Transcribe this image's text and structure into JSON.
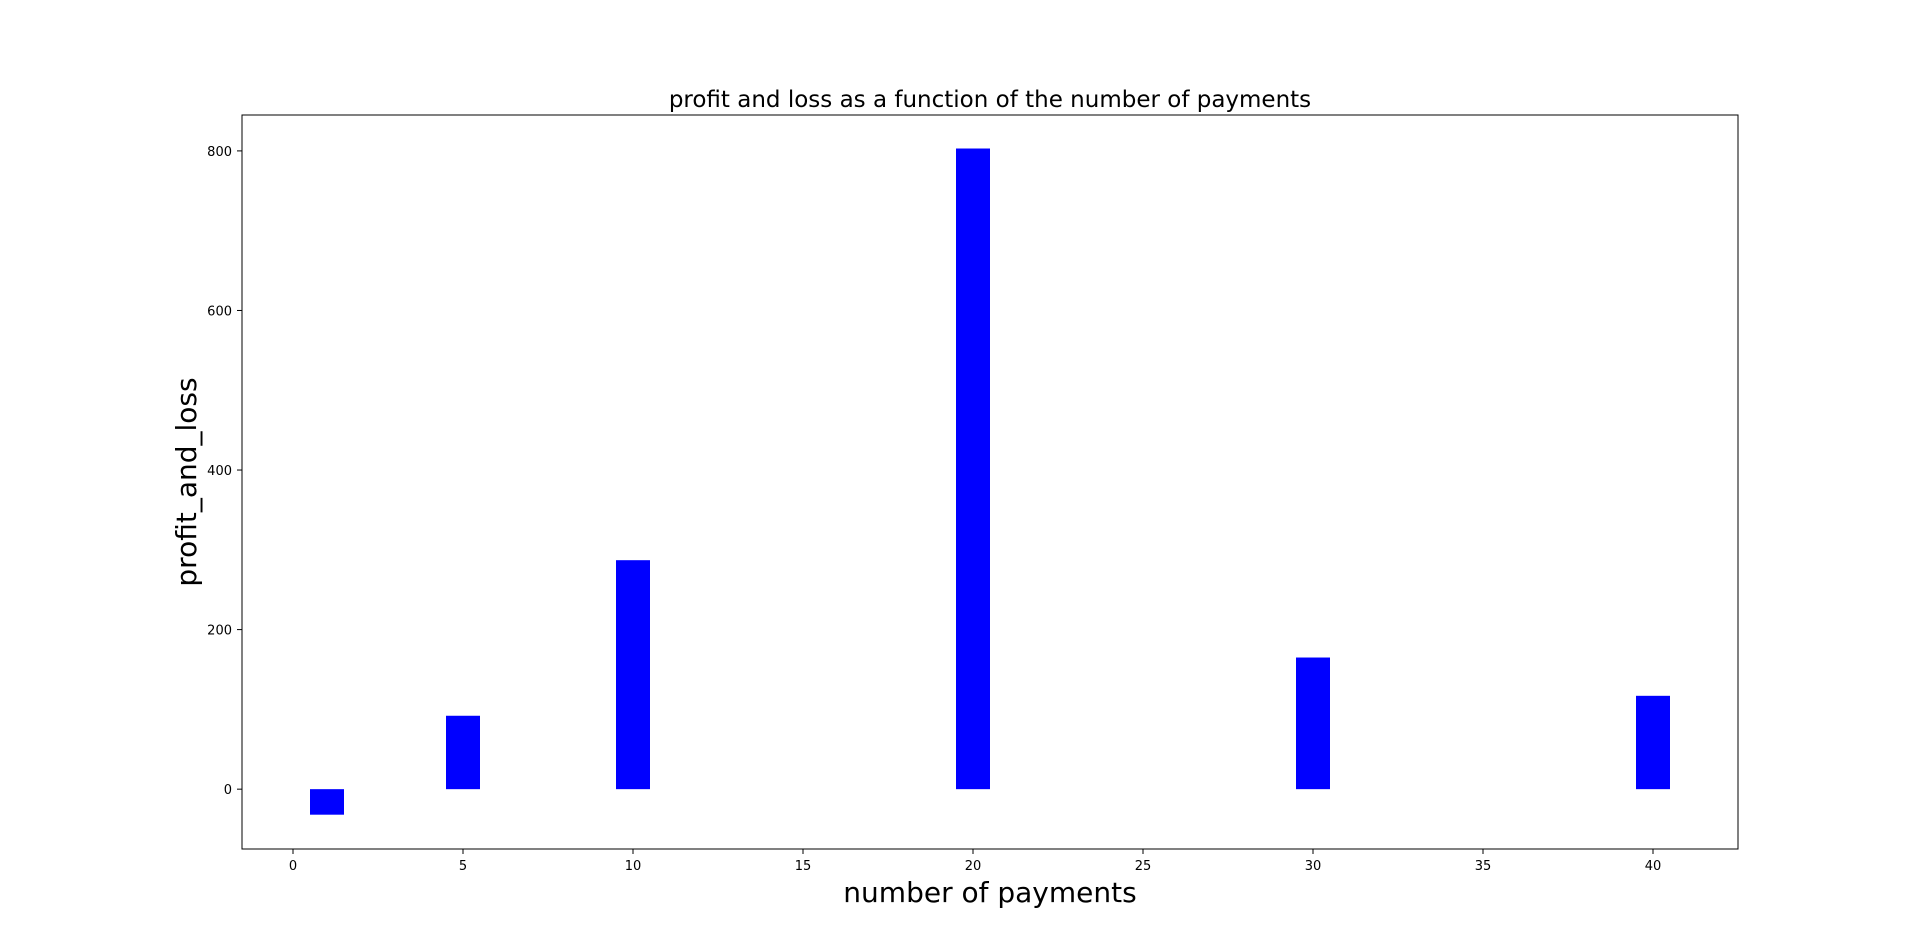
{
  "chart_data": {
    "type": "bar",
    "title": "profit and loss as a function of the number of payments",
    "xlabel": "number of payments",
    "ylabel": "profit_and_loss",
    "x": [
      1,
      5,
      10,
      20,
      30,
      40
    ],
    "values": [
      -32,
      92,
      287,
      803,
      165,
      117
    ],
    "bar_width": 1,
    "xlim": [
      -1.5,
      42.5
    ],
    "ylim": [
      -75,
      845
    ],
    "xticks": [
      0,
      5,
      10,
      15,
      20,
      25,
      30,
      35,
      40
    ],
    "yticks": [
      0,
      200,
      400,
      600,
      800
    ],
    "grid": false,
    "legend": false,
    "colors": {
      "bar": "#0000ff",
      "axes": "#000000",
      "background": "#ffffff"
    }
  }
}
